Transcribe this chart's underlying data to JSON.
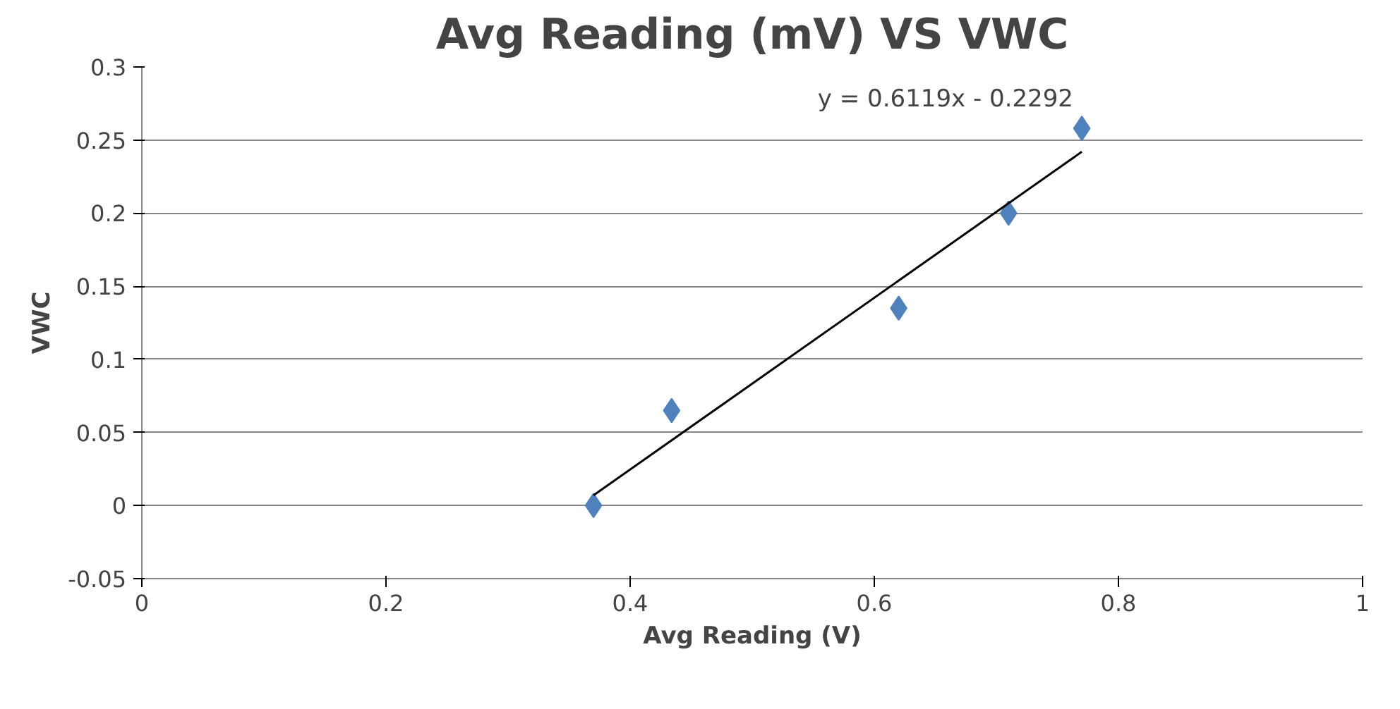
{
  "chart_data": {
    "type": "scatter",
    "title": "Avg Reading (mV) VS VWC",
    "xlabel": "Avg Reading (V)",
    "ylabel": "VWC",
    "xlim": [
      0,
      1
    ],
    "xticks": [
      0,
      0.2,
      0.4,
      0.6,
      0.8,
      1
    ],
    "ylim": [
      -0.05,
      0.3
    ],
    "yticks": [
      -0.05,
      0,
      0.05,
      0.1,
      0.15,
      0.2,
      0.25,
      0.3
    ],
    "grid": "y",
    "marker": "diamond",
    "series": [
      {
        "color": "#4f81bd",
        "x": [
          0.37,
          0.434,
          0.62,
          0.71,
          0.77
        ],
        "values": [
          0.0,
          0.065,
          0.135,
          0.2,
          0.258
        ]
      },
      {
        "type": "line",
        "color": "#000000",
        "x": [
          0.37,
          0.77
        ],
        "values": [
          0.007,
          0.242
        ],
        "marker": "none",
        "line_style": "solid"
      }
    ],
    "annotations": [
      "y = 0.6119x - 0.2292"
    ]
  }
}
